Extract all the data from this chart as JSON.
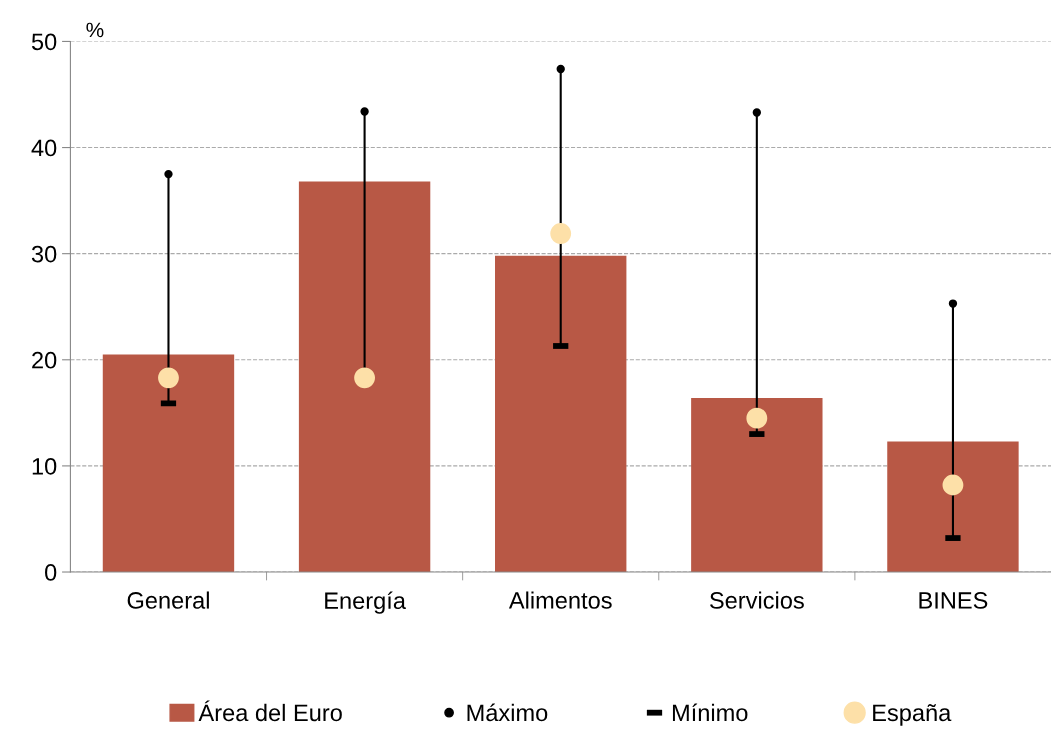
{
  "chart_data": {
    "type": "bar",
    "ylabel": "%",
    "categories": [
      "General",
      "Energía",
      "Alimentos",
      "Servicios",
      "BINES"
    ],
    "series": [
      {
        "name": "Área del Euro",
        "color": "#b85845",
        "values": [
          20.5,
          36.8,
          29.8,
          16.4,
          12.3
        ]
      },
      {
        "name": "Máximo",
        "type": "scatter",
        "marker": "circle",
        "color": "#000000",
        "values": [
          37.5,
          43.4,
          47.4,
          43.3,
          25.3
        ]
      },
      {
        "name": "Mínimo",
        "type": "scatter",
        "color": "#000000",
        "values": [
          15.9,
          null,
          21.3,
          13.0,
          3.2
        ]
      },
      {
        "name": "España",
        "type": "scatter",
        "marker": "circle",
        "color": "#fde0a8",
        "values": [
          18.3,
          18.3,
          31.9,
          14.5,
          8.2
        ]
      }
    ],
    "ylim": [
      0,
      50
    ],
    "yticks": [
      0,
      10,
      20,
      30,
      40,
      50
    ],
    "grid": "y",
    "legend": "bottom"
  }
}
